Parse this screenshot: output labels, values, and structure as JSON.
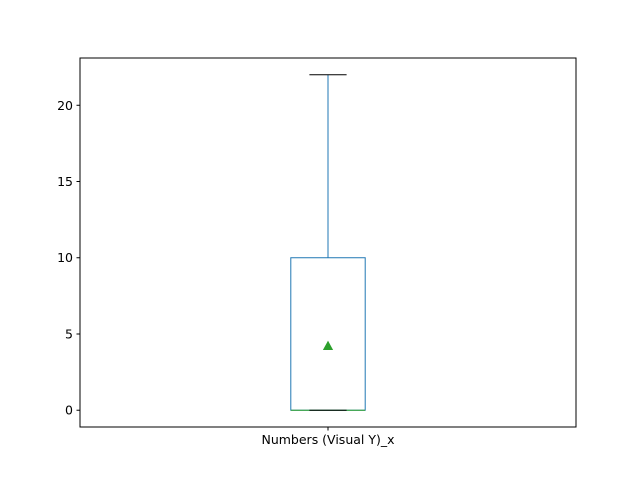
{
  "chart_data": {
    "type": "box",
    "categories": [
      "Numbers (Visual Y)_x"
    ],
    "series": [
      {
        "whisker_low": 0,
        "q1": 0,
        "median": 0,
        "q3": 10,
        "whisker_high": 22,
        "mean": 4.2
      }
    ],
    "ylim": [
      -1.1,
      23.1
    ],
    "yticks": [
      0,
      5,
      10,
      15,
      20
    ],
    "grid": false,
    "legend": "none",
    "colors": {
      "box": "#1f77b4",
      "median": "#2ca02c",
      "mean_marker": "#2ca02c",
      "whisker_cap": "#000000",
      "axes": "#000000"
    }
  }
}
